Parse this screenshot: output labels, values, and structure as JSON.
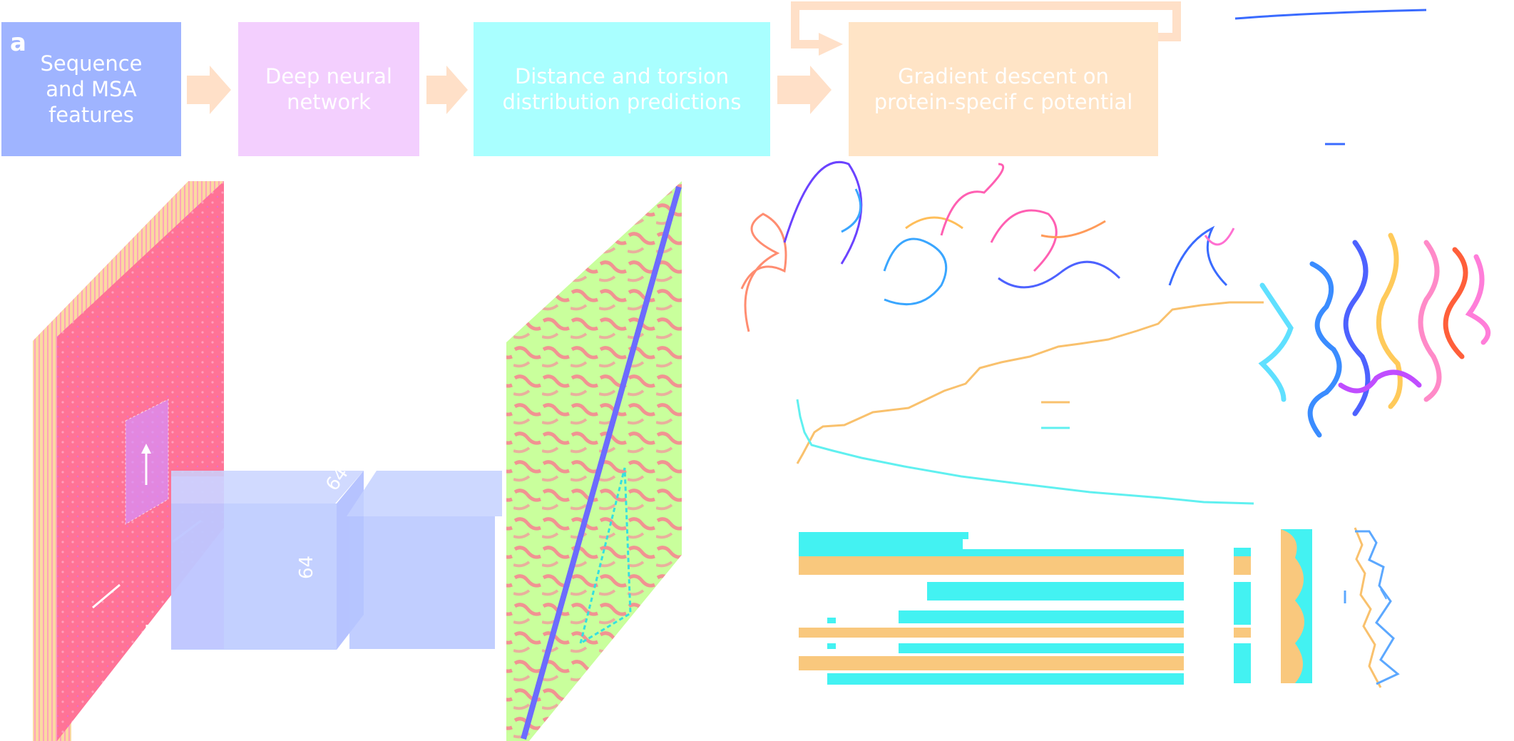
{
  "panel_label": "a",
  "pipeline": [
    {
      "id": "seq",
      "label": "Sequence\nand MSA\nfeatures",
      "color": "#9fb4ff"
    },
    {
      "id": "dnn",
      "label": "Deep neural\nnetwork",
      "color": "#f3cffe"
    },
    {
      "id": "dist",
      "label": "Distance and torsion\ndistribution predictions",
      "color": "#a9ffff"
    },
    {
      "id": "grad",
      "label": "Gradient descent on\nprotein-specif c potential",
      "color": "#ffe4c6"
    }
  ],
  "block_dims": [
    "64",
    "64"
  ],
  "colors": {
    "pink": "#ff6a8e",
    "lavender": "#f0c0ff",
    "blue_block": "#b9c8ff",
    "green": "#caff9a",
    "orange": "#ffbf6b",
    "cyan": "#52f3f3",
    "blue": "#3d73ff"
  }
}
